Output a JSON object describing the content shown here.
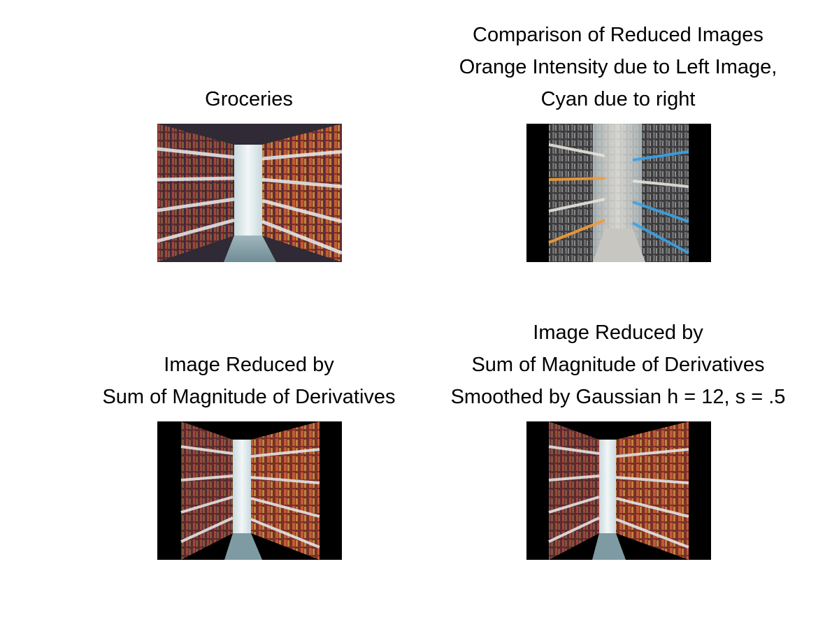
{
  "panels": [
    {
      "id": "original",
      "title_lines": [
        "Groceries"
      ]
    },
    {
      "id": "comparison",
      "title_lines": [
        "Comparison of Reduced Images",
        "Orange Intensity due to Left Image,",
        "Cyan due to right"
      ]
    },
    {
      "id": "reduced-derivatives",
      "title_lines": [
        "Image Reduced by",
        "Sum of Magnitude of Derivatives"
      ]
    },
    {
      "id": "reduced-smoothed",
      "title_lines": [
        "Image Reduced by",
        "Sum of Magnitude of Derivatives",
        "Smoothed by Gaussian h = 12, s = .5"
      ]
    }
  ],
  "colors": {
    "background": "#ffffff",
    "text": "#000000",
    "comparison_left": "#f39c35",
    "comparison_right": "#3aa3e6"
  }
}
